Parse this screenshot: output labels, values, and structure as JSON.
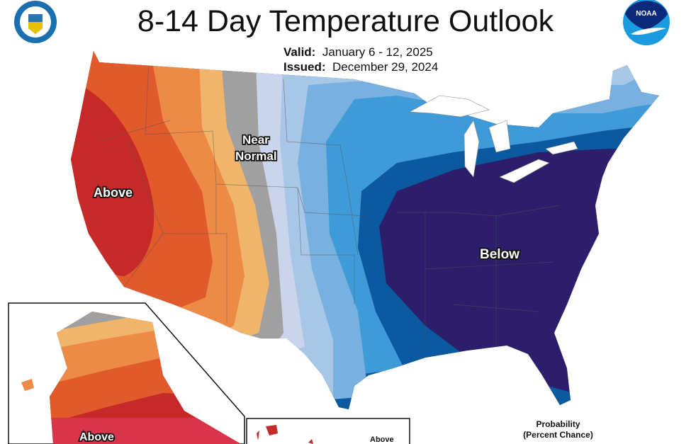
{
  "header": {
    "title": "8-14 Day Temperature Outlook",
    "valid_label": "Valid:",
    "valid_value": "January 6 - 12, 2025",
    "issued_label": "Issued:",
    "issued_value": "December 29, 2024",
    "left_logo": "Department of Commerce seal",
    "right_logo": "NOAA"
  },
  "map": {
    "labels": {
      "west": "Above",
      "near_normal_1": "Near",
      "near_normal_2": "Normal",
      "east": "Below",
      "alaska": "Above",
      "hawaii": "Above"
    },
    "colors": {
      "above_high": "#c62a28",
      "above_mid": "#e05a2b",
      "above_low": "#ec8a46",
      "above_slight": "#f0b56a",
      "near_normal": "#a0a0a0",
      "below_slight": "#cad4ec",
      "below_low": "#a8c6e6",
      "below_mid": "#78b0e0",
      "below": "#3f9ad8",
      "below_high": "#0b5aa0",
      "below_max": "#2c1e6a"
    }
  },
  "legend": {
    "line1": "Probability",
    "line2": "(Percent Chance)"
  }
}
